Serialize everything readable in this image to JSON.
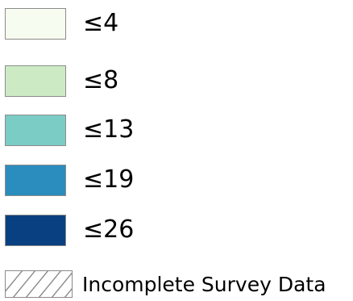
{
  "legend": {
    "items": [
      {
        "label": "≤4",
        "color": "#f7fcf0"
      },
      {
        "label": "≤8",
        "color": "#ccebc5"
      },
      {
        "label": "≤13",
        "color": "#7bccc4"
      },
      {
        "label": "≤19",
        "color": "#2b8cbe"
      },
      {
        "label": "≤26",
        "color": "#084081"
      }
    ],
    "incomplete": {
      "label": "Incomplete Survey Data",
      "pattern": "diagonal-hatch"
    }
  }
}
